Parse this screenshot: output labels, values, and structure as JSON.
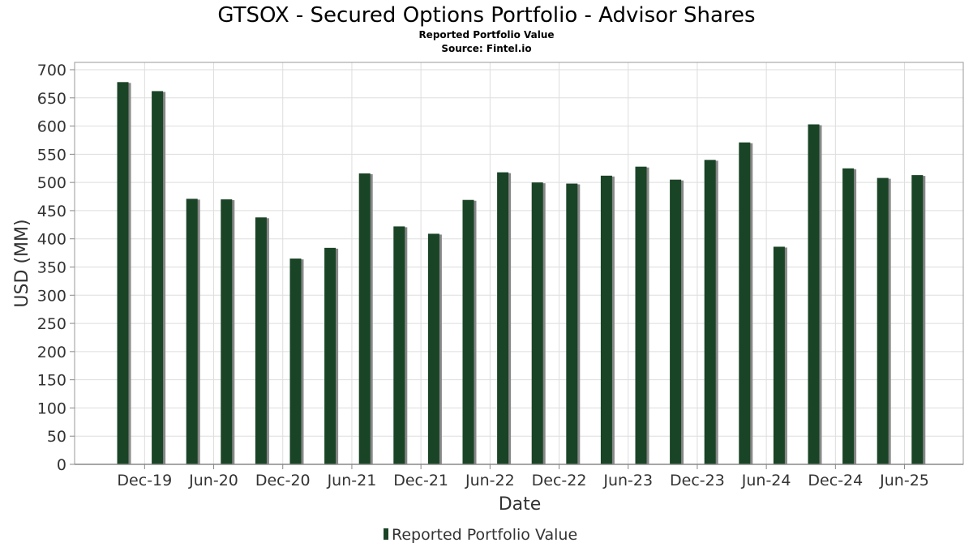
{
  "chart_data": {
    "type": "bar",
    "title": "GTSOX - Secured Options Portfolio - Advisor Shares",
    "subtitle": "Reported Portfolio Value",
    "source": "Source: Fintel.io",
    "xlabel": "Date",
    "ylabel": "USD (MM)",
    "ylim": [
      0,
      700
    ],
    "yticks": [
      0,
      50,
      100,
      150,
      200,
      250,
      300,
      350,
      400,
      450,
      500,
      550,
      600,
      650,
      700
    ],
    "xtick_labels": [
      "Dec-19",
      "Jun-20",
      "Dec-20",
      "Jun-21",
      "Dec-21",
      "Jun-22",
      "Dec-22",
      "Jun-23",
      "Dec-23",
      "Jun-24",
      "Dec-24",
      "Jun-25"
    ],
    "grid": true,
    "legend_position": "bottom-center",
    "series": [
      {
        "name": "Reported Portfolio Value",
        "color": "#1a4426",
        "shadow_color": "#888888",
        "values": [
          678,
          662,
          471,
          470,
          438,
          365,
          384,
          516,
          422,
          409,
          469,
          518,
          500,
          498,
          512,
          528,
          505,
          540,
          571,
          386,
          603,
          525,
          508,
          513
        ]
      }
    ]
  }
}
